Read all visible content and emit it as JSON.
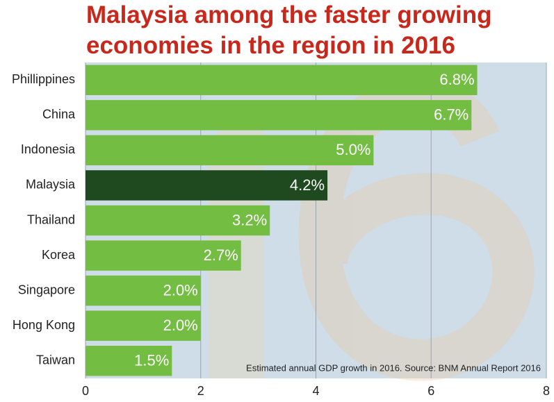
{
  "chart_data": {
    "type": "bar",
    "orientation": "horizontal",
    "title": "Malaysia among the faster growing economies in the region in 2016",
    "categories": [
      "Phillippines",
      "China",
      "Indonesia",
      "Malaysia",
      "Thailand",
      "Korea",
      "Singapore",
      "Hong Kong",
      "Taiwan"
    ],
    "values": [
      6.8,
      6.7,
      5.0,
      4.2,
      3.2,
      2.7,
      2.0,
      2.0,
      1.5
    ],
    "value_labels": [
      "6.8%",
      "6.7%",
      "5.0%",
      "4.2%",
      "3.2%",
      "2.7%",
      "2.0%",
      "2.0%",
      "1.5%"
    ],
    "colors": [
      "#74bd43",
      "#74bd43",
      "#74bd43",
      "#1f4a1f",
      "#74bd43",
      "#74bd43",
      "#74bd43",
      "#74bd43",
      "#74bd43"
    ],
    "xlim": [
      0,
      8
    ],
    "xticks": [
      0,
      2,
      4,
      6,
      8
    ],
    "grid": true,
    "note": "Estimated annual GDP growth in 2016. Source: BNM Annual Report 2016"
  }
}
